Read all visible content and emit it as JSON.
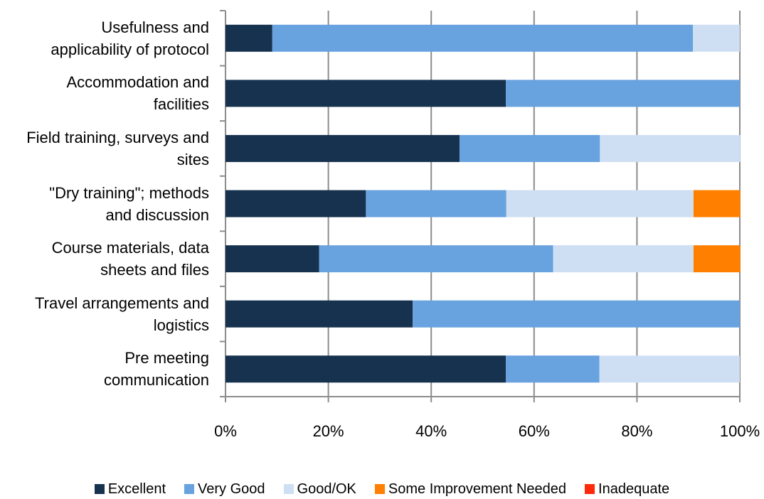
{
  "chart_data": {
    "type": "bar",
    "orientation": "horizontal",
    "stacked": true,
    "percent_stacked": true,
    "categories": [
      "Usefulness and applicability of protocol",
      "Accommodation and facilities",
      "Field training, surveys and sites",
      "\"Dry training\"; methods and discussion",
      "Course materials, data sheets and files",
      "Travel arrangements and logistics",
      "Pre meeting communication"
    ],
    "category_lines": [
      [
        "Usefulness and",
        "applicability of protocol"
      ],
      [
        "Accommodation and",
        "facilities"
      ],
      [
        "Field training, surveys and",
        "sites"
      ],
      [
        "\"Dry training\"; methods",
        "and discussion"
      ],
      [
        "Course materials, data",
        "sheets and files"
      ],
      [
        "Travel arrangements and",
        "logistics"
      ],
      [
        "Pre meeting",
        "communication"
      ]
    ],
    "series": [
      {
        "name": "Excellent",
        "color": "#17324f",
        "values": [
          9.1,
          54.5,
          45.5,
          27.3,
          18.2,
          36.4,
          54.5
        ]
      },
      {
        "name": "Very Good",
        "color": "#68a2df",
        "values": [
          81.8,
          45.5,
          27.3,
          27.3,
          45.5,
          63.6,
          18.2
        ]
      },
      {
        "name": "Good/OK",
        "color": "#cfdff3",
        "values": [
          9.1,
          0,
          27.3,
          36.4,
          27.3,
          0,
          27.3
        ]
      },
      {
        "name": "Some Improvement Needed",
        "color": "#ff7f00",
        "values": [
          0,
          0,
          0,
          9.1,
          9.1,
          0,
          0
        ]
      },
      {
        "name": "Inadequate",
        "color": "#ff2a0c",
        "values": [
          0,
          0,
          0,
          0,
          0,
          0,
          0
        ]
      }
    ],
    "x_ticks": [
      "0%",
      "20%",
      "40%",
      "60%",
      "80%",
      "100%"
    ],
    "xlim": [
      0,
      100
    ],
    "grid": true,
    "legend_position": "bottom"
  }
}
